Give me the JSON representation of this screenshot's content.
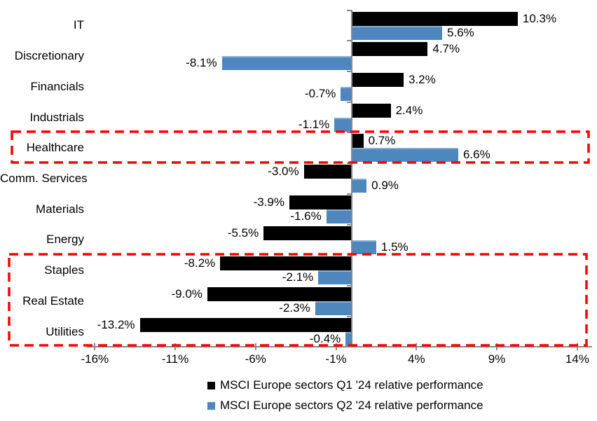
{
  "chart_data": {
    "type": "bar",
    "orientation": "horizontal",
    "categories": [
      "IT",
      "Discretionary",
      "Financials",
      "Industrials",
      "Healthcare",
      "Comm. Services",
      "Materials",
      "Energy",
      "Staples",
      "Real Estate",
      "Utilities"
    ],
    "series": [
      {
        "name": "MSCI Europe sectors Q1 '24 relative performance",
        "color": "#000000",
        "values": [
          10.3,
          4.7,
          3.2,
          2.4,
          0.7,
          -3.0,
          -3.9,
          -5.5,
          -8.2,
          -9.0,
          -13.2
        ]
      },
      {
        "name": "MSCI Europe sectors Q2 '24 relative performance",
        "color": "#4E86BE",
        "values": [
          5.6,
          -8.1,
          -0.7,
          -1.1,
          6.6,
          0.9,
          -1.6,
          1.5,
          -2.1,
          -2.3,
          -0.4
        ]
      }
    ],
    "value_label_format": "0.0%",
    "x_axis": {
      "tick_labels": [
        "-16%",
        "-11%",
        "-6%",
        "-1%",
        "4%",
        "9%",
        "14%"
      ],
      "tick_values": [
        -16,
        -11,
        -6,
        -1,
        4,
        9,
        14
      ],
      "min": -16,
      "max": 14
    },
    "grid": "off",
    "legend": {
      "position": "bottom",
      "entries": [
        "MSCI Europe sectors Q1 '24 relative performance",
        "MSCI Europe sectors Q2 '24 relative performance"
      ]
    },
    "axis_color": "#898989",
    "highlight_color": "#FF0000",
    "highlights": [
      {
        "categories": [
          "Healthcare"
        ]
      },
      {
        "categories": [
          "Staples",
          "Real Estate",
          "Utilities"
        ]
      }
    ]
  }
}
